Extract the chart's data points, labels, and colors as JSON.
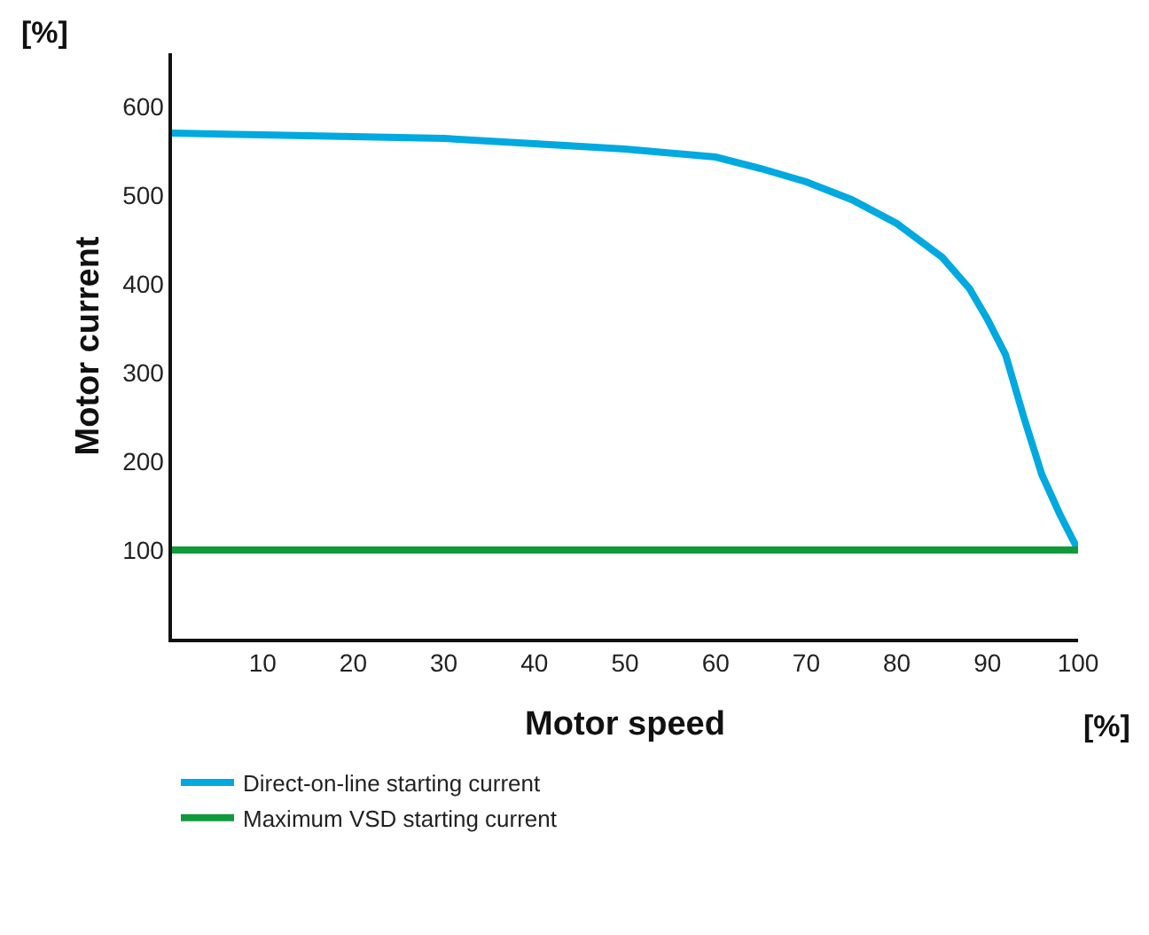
{
  "chart_data": {
    "type": "line",
    "xlabel": "Motor speed",
    "ylabel": "Motor current",
    "annotations": [
      "[%]",
      "[%]"
    ],
    "xlim": [
      0,
      100
    ],
    "xticks": [
      10,
      20,
      30,
      40,
      50,
      60,
      70,
      80,
      90,
      100
    ],
    "ylim": [
      0,
      660
    ],
    "yticks": [
      100,
      200,
      300,
      400,
      500,
      600
    ],
    "grid": false,
    "legend": "bottom",
    "marker": "none",
    "line_style": "solid",
    "series": [
      {
        "name": "Direct-on-line starting current",
        "color": "#00a9e0",
        "x": [
          0,
          10,
          20,
          30,
          40,
          50,
          60,
          65,
          70,
          75,
          80,
          85,
          88,
          90,
          92,
          94,
          96,
          98,
          100
        ],
        "values": [
          570,
          568,
          566,
          564,
          558,
          552,
          543,
          530,
          515,
          495,
          468,
          430,
          395,
          360,
          320,
          250,
          185,
          140,
          100
        ]
      },
      {
        "name": "Maximum VSD starting current",
        "color": "#109a3c",
        "x": [
          0,
          100
        ],
        "values": [
          100,
          100
        ]
      }
    ]
  }
}
